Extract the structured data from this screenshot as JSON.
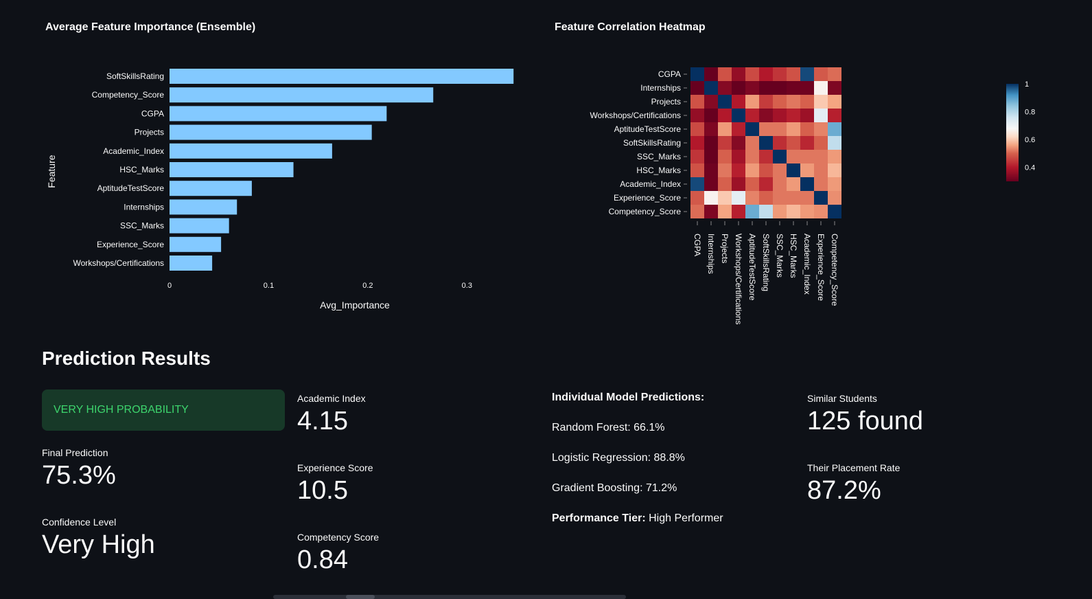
{
  "importance_chart": {
    "title": "Average Feature Importance (Ensemble)"
  },
  "heatmap_chart": {
    "title": "Feature Correlation Heatmap"
  },
  "chart_data": [
    {
      "type": "bar",
      "orientation": "horizontal",
      "title": "Average Feature Importance (Ensemble)",
      "xlabel": "Avg_Importance",
      "ylabel": "Feature",
      "categories": [
        "SoftSkillsRating",
        "Competency_Score",
        "CGPA",
        "Projects",
        "Academic_Index",
        "HSC_Marks",
        "AptitudeTestScore",
        "Internships",
        "SSC_Marks",
        "Experience_Score",
        "Workshops/Certifications"
      ],
      "values": [
        0.347,
        0.266,
        0.219,
        0.204,
        0.164,
        0.125,
        0.083,
        0.068,
        0.06,
        0.052,
        0.043
      ],
      "xlim": [
        0,
        0.36
      ],
      "xticks": [
        0,
        0.1,
        0.2,
        0.3
      ],
      "xtick_labels": [
        "0",
        "0.1",
        "0.2",
        "0.3"
      ],
      "color": "#83c9ff"
    },
    {
      "type": "heatmap",
      "title": "Feature Correlation Heatmap",
      "labels": [
        "CGPA",
        "Internships",
        "Projects",
        "Workshops/Certifications",
        "AptitudeTestScore",
        "SoftSkillsRating",
        "SSC_Marks",
        "HSC_Marks",
        "Academic_Index",
        "Experience_Score",
        "Competency_Score"
      ],
      "matrix": [
        [
          1.0,
          0.3,
          0.48,
          0.36,
          0.47,
          0.4,
          0.44,
          0.48,
          0.98,
          0.49,
          0.51
        ],
        [
          0.3,
          1.0,
          0.34,
          0.28,
          0.33,
          0.3,
          0.29,
          0.31,
          0.31,
          0.67,
          0.33
        ],
        [
          0.48,
          0.34,
          1.0,
          0.4,
          0.55,
          0.45,
          0.5,
          0.52,
          0.5,
          0.6,
          0.56
        ],
        [
          0.36,
          0.28,
          0.4,
          1.0,
          0.41,
          0.34,
          0.38,
          0.41,
          0.37,
          0.72,
          0.41
        ],
        [
          0.47,
          0.33,
          0.55,
          0.41,
          1.0,
          0.52,
          0.52,
          0.55,
          0.5,
          0.53,
          0.88
        ],
        [
          0.4,
          0.3,
          0.45,
          0.34,
          0.52,
          1.0,
          0.43,
          0.48,
          0.42,
          0.5,
          0.78
        ],
        [
          0.44,
          0.29,
          0.5,
          0.38,
          0.52,
          0.43,
          1.0,
          0.52,
          0.52,
          0.52,
          0.55
        ],
        [
          0.48,
          0.31,
          0.52,
          0.41,
          0.55,
          0.48,
          0.52,
          1.0,
          0.55,
          0.52,
          0.58
        ],
        [
          0.98,
          0.31,
          0.5,
          0.37,
          0.5,
          0.42,
          0.52,
          0.55,
          1.0,
          0.52,
          0.55
        ],
        [
          0.49,
          0.67,
          0.6,
          0.72,
          0.53,
          0.5,
          0.52,
          0.52,
          0.52,
          1.0,
          0.54
        ],
        [
          0.51,
          0.33,
          0.56,
          0.41,
          0.88,
          0.78,
          0.55,
          0.58,
          0.55,
          0.54,
          1.0
        ]
      ],
      "colorbar": {
        "min": 0.3,
        "max": 1.0,
        "ticks": [
          1,
          0.8,
          0.6,
          0.4
        ],
        "tick_labels": [
          "1",
          "0.8",
          "0.6",
          "0.4"
        ]
      },
      "colorscale": "RdBu"
    }
  ],
  "results": {
    "title": "Prediction Results",
    "alert": "VERY HIGH PROBABILITY",
    "final_prediction": {
      "label": "Final Prediction",
      "value": "75.3%"
    },
    "confidence": {
      "label": "Confidence Level",
      "value": "Very High"
    },
    "academic_index": {
      "label": "Academic Index",
      "value": "4.15"
    },
    "experience_score": {
      "label": "Experience Score",
      "value": "10.5"
    },
    "competency_score": {
      "label": "Competency Score",
      "value": "0.84"
    },
    "individual": {
      "header": "Individual Model Predictions:",
      "rf": "Random Forest: 66.1%",
      "lr": "Logistic Regression: 88.8%",
      "gb": "Gradient Boosting: 71.2%",
      "tier_label": "Performance Tier:",
      "tier_value": "High Performer"
    },
    "similar": {
      "label": "Similar Students",
      "value": "125 found"
    },
    "placement": {
      "label": "Their Placement Rate",
      "value": "87.2%"
    }
  }
}
